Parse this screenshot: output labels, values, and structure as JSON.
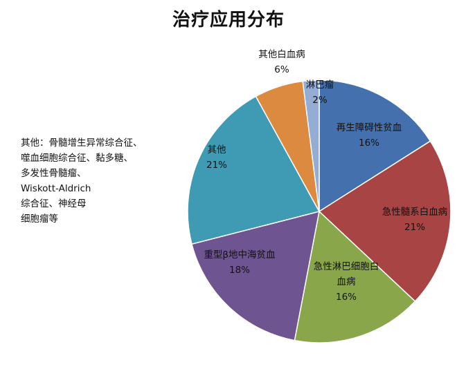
{
  "chart_data": {
    "type": "pie",
    "title": "治疗应用分布",
    "slices": [
      {
        "label_lines": [
          "再生障碍性贫血"
        ],
        "value": 16,
        "value_label": "16%",
        "color": "#4471ae"
      },
      {
        "label_lines": [
          "急性髓系白血病"
        ],
        "value": 21,
        "value_label": "21%",
        "color": "#a84443"
      },
      {
        "label_lines": [
          "急性淋巴细胞白",
          "血病"
        ],
        "value": 16,
        "value_label": "16%",
        "color": "#8aa64b"
      },
      {
        "label_lines": [
          "重型β地中海贫血"
        ],
        "value": 18,
        "value_label": "18%",
        "color": "#6e5490"
      },
      {
        "label_lines": [
          "其他"
        ],
        "value": 21,
        "value_label": "21%",
        "color": "#3f9bb4"
      },
      {
        "label_lines": [
          "其他白血病"
        ],
        "value": 6,
        "value_label": "6%",
        "color": "#dc8a3f"
      },
      {
        "label_lines": [
          "淋巴瘤"
        ],
        "value": 2,
        "value_label": "2%",
        "color": "#95acd4"
      }
    ],
    "note_lines": [
      "其他：骨髓增生异常综合征、",
      "噬血细胞综合征、黏多糖、",
      "多发性骨髓瘤、",
      "Wiskott-Aldrich",
      "综合征、神经母",
      "细胞瘤等"
    ]
  }
}
